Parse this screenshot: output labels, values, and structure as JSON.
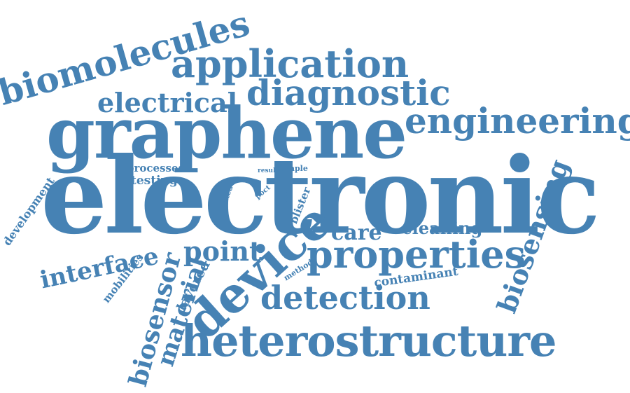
{
  "color": "#4682b4",
  "words": [
    {
      "text": "biomolecules"
    },
    {
      "text": "application"
    },
    {
      "text": "diagnostic"
    },
    {
      "text": "electrical"
    },
    {
      "text": "engineering"
    },
    {
      "text": "graphene"
    },
    {
      "text": "electronic"
    },
    {
      "text": "processes"
    },
    {
      "text": "testing"
    },
    {
      "text": "result"
    },
    {
      "text": "sample"
    },
    {
      "text": "related"
    },
    {
      "text": "poct"
    },
    {
      "text": "pesc"
    },
    {
      "text": "blister"
    },
    {
      "text": "development"
    },
    {
      "text": "cleaning"
    },
    {
      "text": "care"
    },
    {
      "text": "biosensing"
    },
    {
      "text": "point"
    },
    {
      "text": "properties"
    },
    {
      "text": "device"
    },
    {
      "text": "interface"
    },
    {
      "text": "method"
    },
    {
      "text": "contaminant"
    },
    {
      "text": "mobilities"
    },
    {
      "text": "layered"
    },
    {
      "text": "biosensor"
    },
    {
      "text": "material"
    },
    {
      "text": "detection"
    },
    {
      "text": "heterostructure"
    }
  ]
}
